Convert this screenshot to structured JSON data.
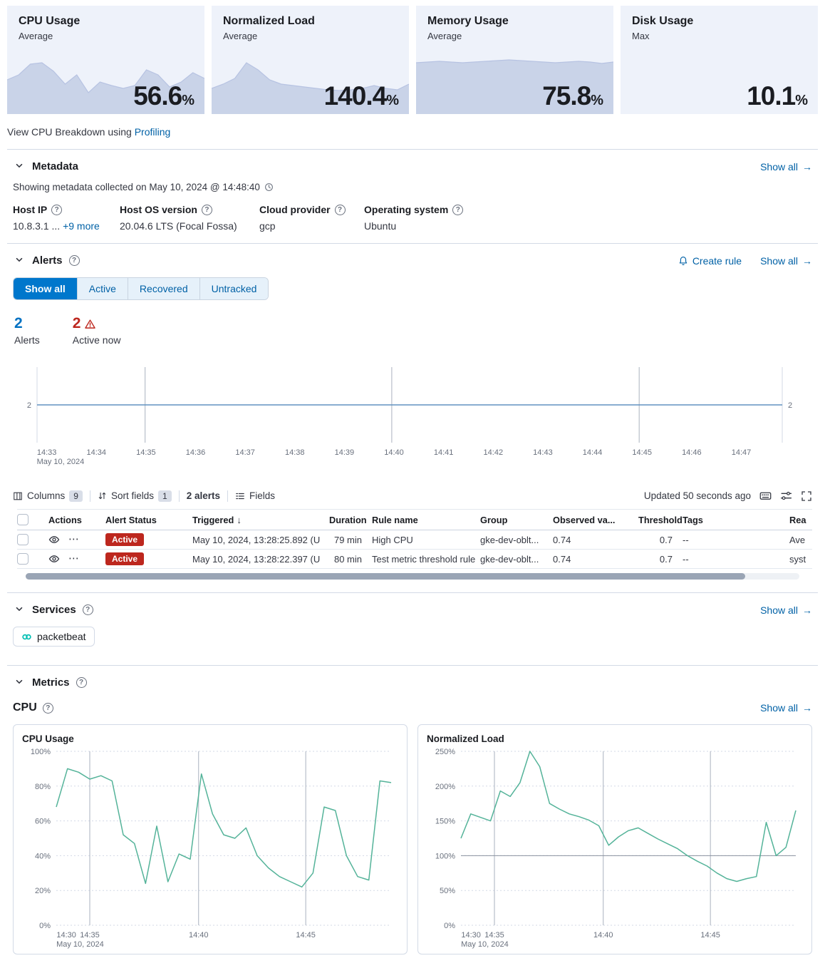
{
  "colors": {
    "primary": "#0077cc",
    "link": "#0061a6",
    "danger": "#bd271e",
    "title_text": "#1a1c21",
    "subdued": "#69707d",
    "border": "#d3dae6",
    "card_bg": "#eef2fa",
    "spark_fill": "#c9d3e8",
    "spark_stroke": "#b7c3e2",
    "vis_green": "#54b399",
    "vis_blue": "#6092c0"
  },
  "icons": {
    "help": "?",
    "arrow_right": "→",
    "sort_desc": "↓",
    "more_actions": "⋯"
  },
  "kpi_cards": [
    {
      "title": "CPU Usage",
      "subtitle": "Average",
      "value": "56.6",
      "unit": "%"
    },
    {
      "title": "Normalized Load",
      "subtitle": "Average",
      "value": "140.4",
      "unit": "%"
    },
    {
      "title": "Memory Usage",
      "subtitle": "Average",
      "value": "75.8",
      "unit": "%"
    },
    {
      "title": "Disk Usage",
      "subtitle": "Max",
      "value": "10.1",
      "unit": "%"
    }
  ],
  "profiling": {
    "prefix": "View CPU Breakdown using ",
    "link": "Profiling"
  },
  "metadata": {
    "heading": "Metadata",
    "show_all": "Show all",
    "collected": "Showing metadata collected on May 10, 2024 @ 14:48:40",
    "fields": [
      {
        "label": "Host IP",
        "value": "10.8.3.1 ...",
        "extra": "+9 more"
      },
      {
        "label": "Host OS version",
        "value": "20.04.6 LTS (Focal Fossa)"
      },
      {
        "label": "Cloud provider",
        "value": "gcp"
      },
      {
        "label": "Operating system",
        "value": "Ubuntu"
      }
    ]
  },
  "alerts": {
    "heading": "Alerts",
    "create_rule": "Create rule",
    "show_all": "Show all",
    "tabs": [
      {
        "label": "Show all",
        "selected": true
      },
      {
        "label": "Active",
        "selected": false
      },
      {
        "label": "Recovered",
        "selected": false
      },
      {
        "label": "Untracked",
        "selected": false
      }
    ],
    "stats": {
      "count": "2",
      "count_label": "Alerts",
      "active_count": "2",
      "active_label": "Active now"
    },
    "toolbar": {
      "columns": "Columns",
      "columns_count": "9",
      "sort": "Sort fields",
      "sort_count": "1",
      "alert_count": "2 alerts",
      "fields": "Fields",
      "updated": "Updated 50 seconds ago"
    },
    "table": {
      "headers": {
        "actions": "Actions",
        "status": "Alert Status",
        "triggered": "Triggered",
        "duration": "Duration",
        "rule": "Rule name",
        "group": "Group",
        "observed": "Observed va...",
        "threshold": "Threshold",
        "tags": "Tags",
        "reason": "Rea"
      },
      "rows": [
        {
          "status": "Active",
          "triggered": "May 10, 2024, 13:28:25.892 (U",
          "duration": "79 min",
          "rule": "High CPU",
          "group": "gke-dev-oblt...",
          "observed": "0.74",
          "threshold": "0.7",
          "tags": "--",
          "reason": "Ave"
        },
        {
          "status": "Active",
          "triggered": "May 10, 2024, 13:28:22.397 (U",
          "duration": "80 min",
          "rule": "Test metric threshold rule",
          "group": "gke-dev-oblt...",
          "observed": "0.74",
          "threshold": "0.7",
          "tags": "--",
          "reason": "syst"
        }
      ]
    }
  },
  "services": {
    "heading": "Services",
    "show_all": "Show all",
    "items": [
      {
        "name": "packetbeat"
      }
    ]
  },
  "metrics": {
    "heading": "Metrics",
    "group": "CPU",
    "show_all": "Show all"
  },
  "chart_data": [
    {
      "id": "spark-cpu",
      "type": "area",
      "title": "CPU Usage sparkline",
      "ylim": [
        0,
        100
      ],
      "values": [
        48,
        55,
        70,
        72,
        60,
        42,
        55,
        30,
        45,
        40,
        36,
        40,
        62,
        55,
        38,
        45,
        58,
        50
      ]
    },
    {
      "id": "spark-load",
      "type": "area",
      "title": "Normalized Load sparkline",
      "ylim": [
        0,
        100
      ],
      "values": [
        36,
        42,
        50,
        72,
        62,
        48,
        42,
        40,
        38,
        36,
        34,
        33,
        34,
        36,
        40,
        36,
        34,
        42
      ]
    },
    {
      "id": "spark-memory",
      "type": "area",
      "title": "Memory Usage sparkline",
      "ylim": [
        0,
        100
      ],
      "values": [
        72,
        73,
        74,
        73,
        72,
        73,
        74,
        75,
        76,
        75,
        74,
        73,
        72,
        73,
        74,
        73,
        71,
        73
      ]
    },
    {
      "id": "alerts-over-time",
      "type": "line",
      "title": "Alerts over time",
      "color": "blue",
      "ylim": [
        0,
        4
      ],
      "values": [
        2,
        2
      ],
      "edge_label": "2",
      "edge_value": 2,
      "x_ticks": [
        "14:33",
        "14:34",
        "14:35",
        "14:36",
        "14:37",
        "14:38",
        "14:39",
        "14:40",
        "14:41",
        "14:42",
        "14:43",
        "14:44",
        "14:45",
        "14:46",
        "14:47"
      ],
      "x_span": [
        0.013,
        0.945
      ],
      "vlines": [
        0.145,
        0.476,
        0.808
      ],
      "light_vlines": [
        0,
        1
      ],
      "x_date": "May 10, 2024"
    },
    {
      "id": "cpu-usage",
      "type": "line",
      "title": "CPU Usage",
      "color": "green",
      "ylim": [
        0,
        100
      ],
      "y_ticks": [
        0,
        20,
        40,
        60,
        80,
        100
      ],
      "y_suffix": "%",
      "x_labels": [
        {
          "t": "14:30",
          "f": 0.03
        },
        {
          "t": "14:35",
          "f": 0.1
        },
        {
          "t": "14:40",
          "f": 0.425
        },
        {
          "t": "14:45",
          "f": 0.745
        }
      ],
      "vlines": [
        0.1,
        0.425,
        0.745
      ],
      "x_date": "May 10, 2024",
      "values": [
        68,
        90,
        88,
        84,
        86,
        83,
        52,
        47,
        24,
        57,
        25,
        41,
        38,
        87,
        64,
        52,
        50,
        56,
        40,
        33,
        28,
        25,
        22,
        30,
        68,
        66,
        40,
        28,
        26,
        83,
        82
      ]
    },
    {
      "id": "normalized-load",
      "type": "line",
      "title": "Normalized Load",
      "color": "green",
      "ylim": [
        0,
        250
      ],
      "y_ticks": [
        0,
        50,
        100,
        150,
        200,
        250
      ],
      "y_suffix": "%",
      "refline": 100,
      "x_labels": [
        {
          "t": "14:30",
          "f": 0.03
        },
        {
          "t": "14:35",
          "f": 0.1
        },
        {
          "t": "14:40",
          "f": 0.425
        },
        {
          "t": "14:45",
          "f": 0.745
        }
      ],
      "vlines": [
        0.1,
        0.425,
        0.745
      ],
      "x_date": "May 10, 2024",
      "values": [
        125,
        160,
        155,
        150,
        193,
        185,
        205,
        250,
        228,
        175,
        167,
        160,
        156,
        151,
        143,
        115,
        127,
        136,
        140,
        132,
        124,
        117,
        110,
        100,
        92,
        85,
        75,
        67,
        63,
        67,
        70,
        148,
        100,
        112,
        165
      ]
    }
  ]
}
